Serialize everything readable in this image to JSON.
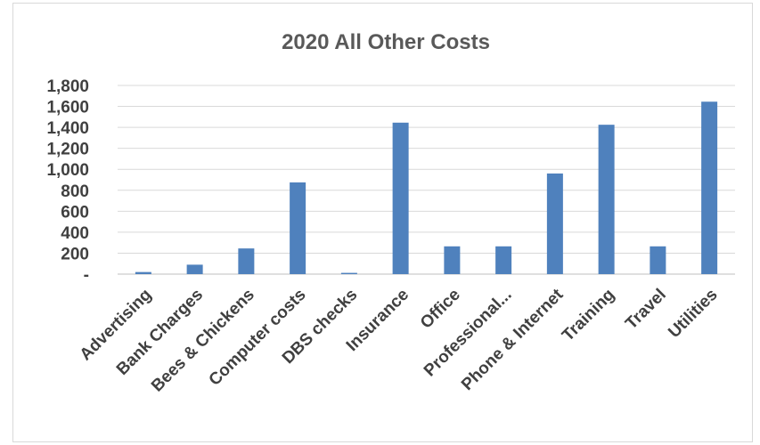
{
  "chart_data": {
    "type": "bar",
    "title": "2020 All Other Costs",
    "xlabel": "",
    "ylabel": "",
    "categories": [
      "Advertising",
      "Bank Charges",
      "Bees & Chickens",
      "Computer costs",
      "DBS checks",
      "Insurance",
      "Office",
      "Professional...",
      "Phone & Internet",
      "Training",
      "Travel",
      "Utilities"
    ],
    "values": [
      20,
      90,
      245,
      875,
      12,
      1445,
      265,
      265,
      960,
      1425,
      265,
      1645
    ],
    "yticks": [
      "-",
      "200",
      "400",
      "600",
      "800",
      "1,000",
      "1,200",
      "1,400",
      "1,600",
      "1,800"
    ],
    "ylim": [
      0,
      1800
    ],
    "grid": true,
    "legend": "none",
    "bar_color": "#4f81bd"
  }
}
